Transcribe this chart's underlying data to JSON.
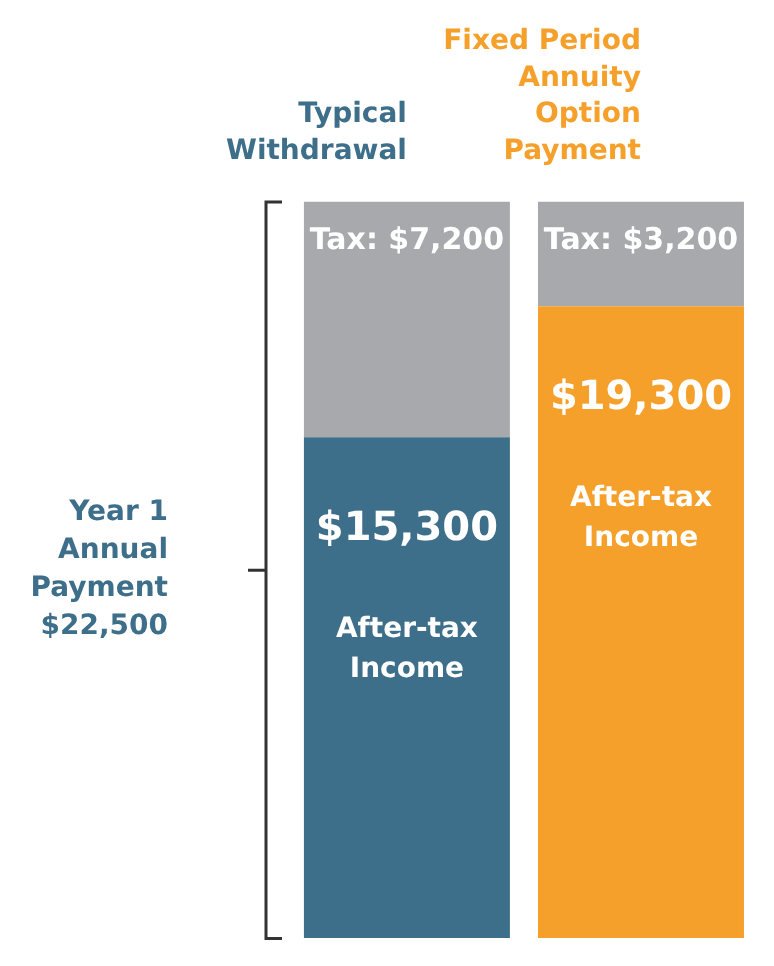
{
  "chart_data": {
    "type": "bar",
    "stacked": true,
    "categories": [
      "Typical Withdrawal",
      "Fixed Period Annuity Option Payment"
    ],
    "series": [
      {
        "name": "After-tax Income",
        "colors": [
          "#3d6e8a",
          "#f5a02a"
        ],
        "values": [
          15300,
          19300
        ],
        "value_labels": [
          "$15,300",
          "$19,300"
        ]
      },
      {
        "color": "#a7a9ac",
        "values": [
          7200,
          3200
        ],
        "value_labels": [
          "Tax: $7,200",
          "Tax: $3,200"
        ]
      }
    ],
    "annotations": [
      "Year 1 Annual Payment $22,500"
    ],
    "legend": false
  }
}
